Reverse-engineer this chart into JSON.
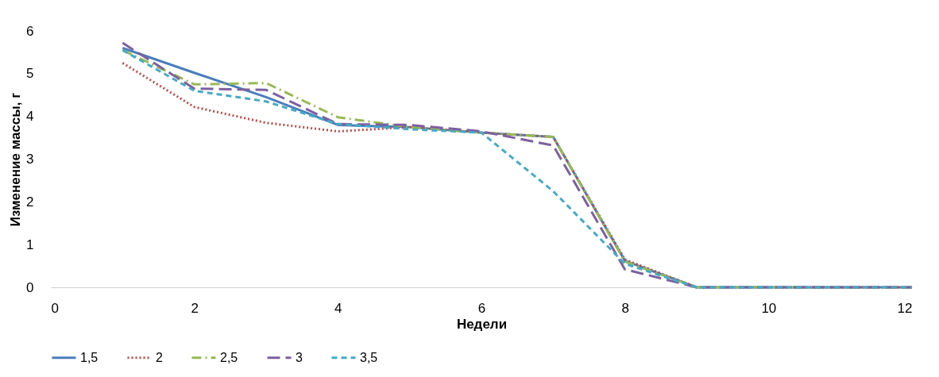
{
  "chart_data": {
    "type": "line",
    "xlabel": "Недели",
    "ylabel": "Изменение массы, г",
    "x": [
      1,
      2,
      3,
      4,
      5,
      6,
      7,
      8,
      9,
      10,
      11,
      12
    ],
    "xlim": [
      0,
      12
    ],
    "xticks": [
      0,
      2,
      4,
      6,
      8,
      10,
      12
    ],
    "ylim": [
      0,
      6
    ],
    "yticks": [
      0,
      1,
      2,
      3,
      4,
      5,
      6
    ],
    "grid": false,
    "legend": "bottom",
    "marker": "none",
    "series": [
      {
        "name": "1,5",
        "color": "#4a7ebb",
        "line_style": "solid",
        "values": [
          5.6,
          5.02,
          4.45,
          3.8,
          3.75,
          3.62,
          3.52,
          0.62,
          0,
          0,
          0,
          0
        ]
      },
      {
        "name": "2",
        "color": "#be4b48",
        "line_style": "dotted",
        "values": [
          5.25,
          4.22,
          3.85,
          3.65,
          3.75,
          3.62,
          3.52,
          0.65,
          0,
          0,
          0,
          0
        ]
      },
      {
        "name": "2,5",
        "color": "#98b954",
        "line_style": "dashdot",
        "values": [
          5.55,
          4.75,
          4.78,
          3.98,
          3.75,
          3.62,
          3.52,
          0.6,
          0,
          0,
          0,
          0
        ]
      },
      {
        "name": "3",
        "color": "#7d60a0",
        "line_style": "longdash",
        "values": [
          5.72,
          4.65,
          4.62,
          3.82,
          3.8,
          3.65,
          3.32,
          0.42,
          0,
          0,
          0,
          0
        ]
      },
      {
        "name": "3,5",
        "color": "#46aac5",
        "line_style": "dashed",
        "values": [
          5.55,
          4.6,
          4.35,
          3.82,
          3.7,
          3.62,
          2.25,
          0.55,
          0,
          0,
          0,
          0
        ]
      }
    ]
  }
}
